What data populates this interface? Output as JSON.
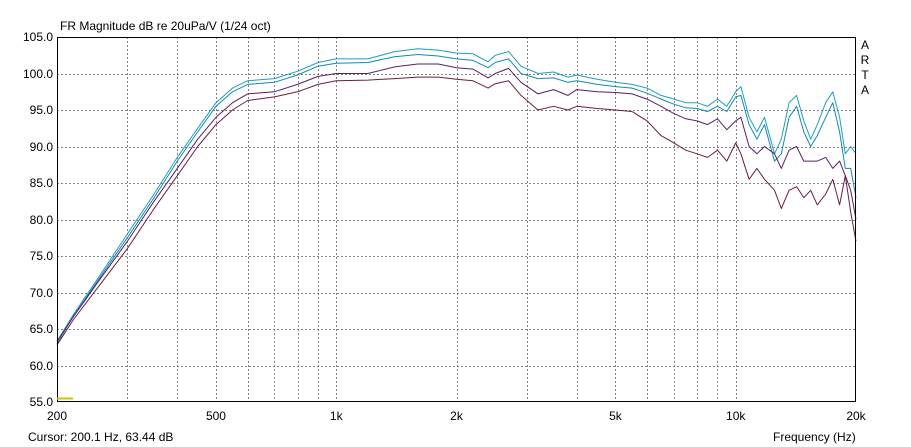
{
  "chart_data": {
    "type": "line",
    "title": "FR Magnitude dB re 20uPa/V (1/24 oct)",
    "xlabel": "Frequency (Hz)",
    "ylabel": "",
    "x_scale": "log",
    "xlim": [
      200,
      20000
    ],
    "ylim": [
      55,
      105
    ],
    "grid": true,
    "y_ticks": [
      "105.0",
      "100.0",
      "95.0",
      "90.0",
      "85.0",
      "80.0",
      "75.0",
      "70.0",
      "65.0",
      "60.0",
      "55.0"
    ],
    "x_ticks": [
      {
        "value": 200,
        "label": "200"
      },
      {
        "value": 500,
        "label": "500"
      },
      {
        "value": 1000,
        "label": "1k"
      },
      {
        "value": 2000,
        "label": "2k"
      },
      {
        "value": 5000,
        "label": "5k"
      },
      {
        "value": 10000,
        "label": "10k"
      },
      {
        "value": 20000,
        "label": "20k"
      }
    ],
    "watermark_letters": [
      "A",
      "R",
      "T",
      "A"
    ],
    "cursor_text": "Cursor: 200.1 Hz, 63.44 dB",
    "colors": {
      "grid": "#808080",
      "axes": "#000000",
      "cursor_marker": "#c8c800"
    },
    "series": [
      {
        "color": "#1aa0c0",
        "points": [
          [
            200,
            63.3
          ],
          [
            220,
            67
          ],
          [
            250,
            71.5
          ],
          [
            300,
            78
          ],
          [
            350,
            83.5
          ],
          [
            400,
            88.5
          ],
          [
            450,
            92.5
          ],
          [
            500,
            96
          ],
          [
            550,
            98
          ],
          [
            600,
            99
          ],
          [
            700,
            99.3
          ],
          [
            800,
            100.3
          ],
          [
            900,
            101.5
          ],
          [
            1000,
            102
          ],
          [
            1200,
            102
          ],
          [
            1400,
            103
          ],
          [
            1600,
            103.4
          ],
          [
            1800,
            103.2
          ],
          [
            2000,
            102.8
          ],
          [
            2200,
            102.7
          ],
          [
            2400,
            101.6
          ],
          [
            2500,
            102.5
          ],
          [
            2700,
            103
          ],
          [
            2900,
            101
          ],
          [
            3200,
            100
          ],
          [
            3500,
            100.2
          ],
          [
            3800,
            99.5
          ],
          [
            4000,
            99.8
          ],
          [
            4500,
            99.2
          ],
          [
            5000,
            98.8
          ],
          [
            5500,
            98.5
          ],
          [
            6000,
            98
          ],
          [
            6500,
            97
          ],
          [
            7000,
            96.5
          ],
          [
            7500,
            96
          ],
          [
            8000,
            96
          ],
          [
            8500,
            95.5
          ],
          [
            9000,
            96.5
          ],
          [
            9500,
            95.5
          ],
          [
            10000,
            97.5
          ],
          [
            10300,
            98.2
          ],
          [
            10800,
            94
          ],
          [
            11300,
            92
          ],
          [
            11800,
            94
          ],
          [
            12500,
            89
          ],
          [
            13000,
            91
          ],
          [
            13600,
            96
          ],
          [
            14200,
            97
          ],
          [
            14800,
            93.5
          ],
          [
            15400,
            91
          ],
          [
            16000,
            93
          ],
          [
            16800,
            96
          ],
          [
            17500,
            97.5
          ],
          [
            18200,
            94
          ],
          [
            18800,
            89
          ],
          [
            19400,
            90
          ],
          [
            20000,
            89
          ]
        ]
      },
      {
        "color": "#148ab0",
        "points": [
          [
            200,
            63
          ],
          [
            220,
            66.8
          ],
          [
            250,
            71.2
          ],
          [
            300,
            77.5
          ],
          [
            350,
            83
          ],
          [
            400,
            88
          ],
          [
            450,
            92
          ],
          [
            500,
            95.5
          ],
          [
            550,
            97.5
          ],
          [
            600,
            98.5
          ],
          [
            700,
            98.8
          ],
          [
            800,
            99.8
          ],
          [
            900,
            101
          ],
          [
            1000,
            101.4
          ],
          [
            1200,
            101.5
          ],
          [
            1400,
            102.3
          ],
          [
            1600,
            102.6
          ],
          [
            1800,
            102.4
          ],
          [
            2000,
            102
          ],
          [
            2200,
            101.8
          ],
          [
            2400,
            100.8
          ],
          [
            2500,
            101.5
          ],
          [
            2700,
            102
          ],
          [
            2900,
            100
          ],
          [
            3200,
            99.3
          ],
          [
            3500,
            99.4
          ],
          [
            3800,
            98.8
          ],
          [
            4000,
            99
          ],
          [
            4500,
            98.5
          ],
          [
            5000,
            98.2
          ],
          [
            5500,
            98
          ],
          [
            6000,
            97.3
          ],
          [
            6500,
            96.5
          ],
          [
            7000,
            95.8
          ],
          [
            7500,
            95.3
          ],
          [
            8000,
            95.2
          ],
          [
            8500,
            94.8
          ],
          [
            9000,
            95.5
          ],
          [
            9500,
            94.8
          ],
          [
            10000,
            96.8
          ],
          [
            10300,
            97
          ],
          [
            10800,
            93
          ],
          [
            11300,
            91
          ],
          [
            11800,
            93
          ],
          [
            12500,
            88
          ],
          [
            13000,
            89
          ],
          [
            13600,
            94
          ],
          [
            14200,
            95.5
          ],
          [
            14800,
            92
          ],
          [
            15400,
            90
          ],
          [
            16000,
            91.5
          ],
          [
            16800,
            94
          ],
          [
            17500,
            96
          ],
          [
            18200,
            92
          ],
          [
            18800,
            87
          ],
          [
            19400,
            87
          ],
          [
            20000,
            83
          ]
        ]
      },
      {
        "color": "#5a1f6a",
        "points": [
          [
            200,
            63.3
          ],
          [
            220,
            66.7
          ],
          [
            250,
            71
          ],
          [
            300,
            77
          ],
          [
            350,
            82.5
          ],
          [
            400,
            87
          ],
          [
            450,
            91
          ],
          [
            500,
            94
          ],
          [
            550,
            96
          ],
          [
            600,
            97.2
          ],
          [
            700,
            97.5
          ],
          [
            800,
            98.5
          ],
          [
            900,
            99.6
          ],
          [
            1000,
            100
          ],
          [
            1200,
            100
          ],
          [
            1400,
            100.9
          ],
          [
            1600,
            101.3
          ],
          [
            1800,
            101.3
          ],
          [
            2000,
            100.8
          ],
          [
            2200,
            100.6
          ],
          [
            2400,
            99.4
          ],
          [
            2500,
            100
          ],
          [
            2700,
            100.7
          ],
          [
            2900,
            98.8
          ],
          [
            3200,
            97.2
          ],
          [
            3500,
            97.8
          ],
          [
            3800,
            97
          ],
          [
            4000,
            97.8
          ],
          [
            4500,
            97.5
          ],
          [
            5000,
            97.4
          ],
          [
            5500,
            97.2
          ],
          [
            6000,
            96.5
          ],
          [
            6500,
            95.5
          ],
          [
            7000,
            94.5
          ],
          [
            7500,
            93.8
          ],
          [
            8000,
            93.5
          ],
          [
            8500,
            93
          ],
          [
            9000,
            93.8
          ],
          [
            9500,
            92.3
          ],
          [
            10000,
            93.5
          ],
          [
            10300,
            94
          ],
          [
            10800,
            90
          ],
          [
            11300,
            89
          ],
          [
            11800,
            90
          ],
          [
            12500,
            89
          ],
          [
            13000,
            87
          ],
          [
            13600,
            89.5
          ],
          [
            14200,
            90
          ],
          [
            14800,
            88
          ],
          [
            15400,
            88
          ],
          [
            16000,
            88
          ],
          [
            16800,
            88.5
          ],
          [
            17500,
            87
          ],
          [
            18200,
            88
          ],
          [
            18800,
            86
          ],
          [
            19400,
            84
          ],
          [
            20000,
            80
          ]
        ]
      },
      {
        "color": "#6a1f40",
        "points": [
          [
            200,
            62.8
          ],
          [
            220,
            66.3
          ],
          [
            250,
            70.3
          ],
          [
            300,
            76
          ],
          [
            350,
            81.5
          ],
          [
            400,
            86
          ],
          [
            450,
            90
          ],
          [
            500,
            93
          ],
          [
            550,
            95
          ],
          [
            600,
            96.3
          ],
          [
            700,
            96.8
          ],
          [
            800,
            97.5
          ],
          [
            900,
            98.5
          ],
          [
            1000,
            99
          ],
          [
            1200,
            99.1
          ],
          [
            1400,
            99.3
          ],
          [
            1600,
            99.5
          ],
          [
            1800,
            99.5
          ],
          [
            2000,
            99.2
          ],
          [
            2200,
            99
          ],
          [
            2400,
            98
          ],
          [
            2500,
            98.6
          ],
          [
            2700,
            99
          ],
          [
            2900,
            97
          ],
          [
            3200,
            95
          ],
          [
            3500,
            95.5
          ],
          [
            3800,
            95
          ],
          [
            4000,
            95.5
          ],
          [
            4500,
            95.2
          ],
          [
            5000,
            95
          ],
          [
            5500,
            94.8
          ],
          [
            6000,
            93.5
          ],
          [
            6500,
            91.5
          ],
          [
            7000,
            90.5
          ],
          [
            7500,
            89.5
          ],
          [
            8000,
            89
          ],
          [
            8500,
            88.5
          ],
          [
            9000,
            89.5
          ],
          [
            9500,
            88
          ],
          [
            10000,
            90.5
          ],
          [
            10300,
            89
          ],
          [
            10800,
            85.5
          ],
          [
            11300,
            87
          ],
          [
            11800,
            85.5
          ],
          [
            12500,
            84
          ],
          [
            13000,
            81.5
          ],
          [
            13600,
            84
          ],
          [
            14200,
            84.5
          ],
          [
            14800,
            83
          ],
          [
            15400,
            84
          ],
          [
            16000,
            82
          ],
          [
            16800,
            83.5
          ],
          [
            17500,
            85.5
          ],
          [
            18200,
            82
          ],
          [
            18800,
            86
          ],
          [
            19400,
            81
          ],
          [
            20000,
            77
          ]
        ]
      }
    ]
  }
}
